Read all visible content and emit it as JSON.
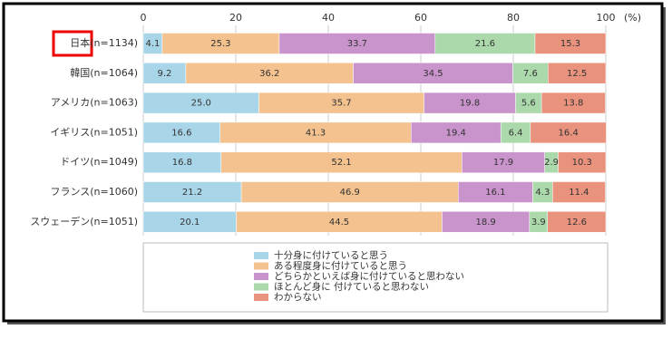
{
  "chart_data": {
    "type": "stacked-bar-horizontal",
    "categories": [
      "日本(n=1134)",
      "韓国(n=1064)",
      "アメリカ(n=1063)",
      "イギリス(n=1051)",
      "ドイツ(n=1049)",
      "フランス(n=1060)",
      "スウェーデン(n=1051)"
    ],
    "series": [
      {
        "name": "十分身に付けていると思う",
        "color": "#a9d5e8",
        "values": [
          4.1,
          9.2,
          25.0,
          16.6,
          16.8,
          21.2,
          20.1
        ],
        "value_labels": [
          "4.1",
          "9.2",
          "25.0",
          "16.6",
          "16.8",
          "21.2",
          "20.1"
        ]
      },
      {
        "name": "ある程度身に付けていると思う",
        "color": "#f3c28f",
        "values": [
          25.3,
          36.2,
          35.7,
          41.3,
          52.1,
          46.9,
          44.5
        ],
        "value_labels": [
          "25.3",
          "36.2",
          "35.7",
          "41.3",
          "52.1",
          "46.9",
          "44.5"
        ]
      },
      {
        "name": "どちらかといえば身に付けていると思わない",
        "color": "#c993cb",
        "values": [
          33.7,
          34.5,
          19.8,
          19.4,
          17.9,
          16.1,
          18.9
        ],
        "value_labels": [
          "33.7",
          "34.5",
          "19.8",
          "19.4",
          "17.9",
          "16.1",
          "18.9"
        ]
      },
      {
        "name": "ほとんど身に 付けていると思わない",
        "color": "#abd9ab",
        "values": [
          21.6,
          7.6,
          5.6,
          6.4,
          2.9,
          4.3,
          3.9
        ],
        "value_labels": [
          "21.6",
          "7.6",
          "5.6",
          "6.4",
          "2.9",
          "4.3",
          "3.9"
        ]
      },
      {
        "name": "わからない",
        "color": "#e9927d",
        "values": [
          15.3,
          12.5,
          13.8,
          16.4,
          10.3,
          11.4,
          12.6
        ],
        "value_labels": [
          "15.3",
          "12.5",
          "13.8",
          "16.4",
          "10.3",
          "11.4",
          "12.6"
        ]
      }
    ],
    "xlim": [
      0,
      100
    ],
    "xticks": [
      0,
      20,
      40,
      60,
      80,
      100
    ],
    "x_unit": "(%)",
    "grid": true
  }
}
